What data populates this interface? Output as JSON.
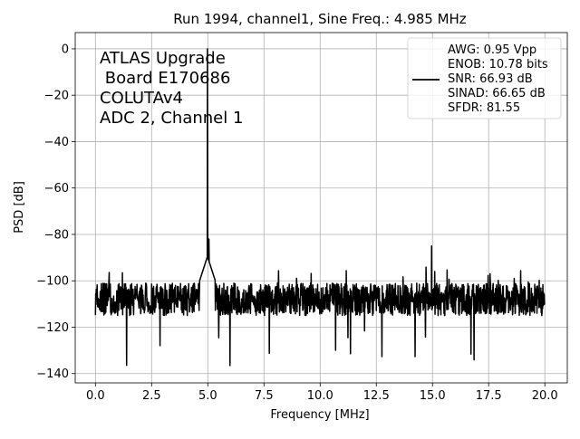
{
  "chart_data": {
    "type": "line",
    "title": "Run 1994, channel1, Sine Freq.: 4.985 MHz",
    "xlabel": "Frequency [MHz]",
    "ylabel": "PSD [dB]",
    "xlim": [
      -0.9,
      21.0
    ],
    "ylim": [
      -144,
      7
    ],
    "xticks": [
      0.0,
      2.5,
      5.0,
      7.5,
      10.0,
      12.5,
      15.0,
      17.5,
      20.0
    ],
    "xtick_labels": [
      "0.0",
      "2.5",
      "5.0",
      "7.5",
      "10.0",
      "12.5",
      "15.0",
      "17.5",
      "20.0"
    ],
    "yticks": [
      0,
      -20,
      -40,
      -60,
      -80,
      -100,
      -120,
      -140
    ],
    "ytick_labels": [
      "0",
      "−20",
      "−40",
      "−60",
      "−80",
      "−100",
      "−120",
      "−140"
    ],
    "grid": true,
    "annotation_lines": [
      "ATLAS Upgrade",
      " Board E170686",
      "COLUTAv4",
      "ADC 2, Channel 1"
    ],
    "legend": {
      "placement": "top-right",
      "lines": [
        "AWG: 0.95 Vpp",
        "ENOB: 10.78 bits",
        "SNR: 66.93 dB",
        "SINAD: 66.65 dB",
        "SFDR: 81.55"
      ]
    },
    "series": [
      {
        "color": "#000000",
        "noise_floor_db": -108,
        "noise_range_db": [
          -138,
          -94
        ],
        "peaks": [
          {
            "x": 4.985,
            "y": 0
          },
          {
            "x": 5.05,
            "y": -82
          },
          {
            "x": 14.96,
            "y": -85
          },
          {
            "x": 15.1,
            "y": -96
          }
        ]
      }
    ]
  }
}
